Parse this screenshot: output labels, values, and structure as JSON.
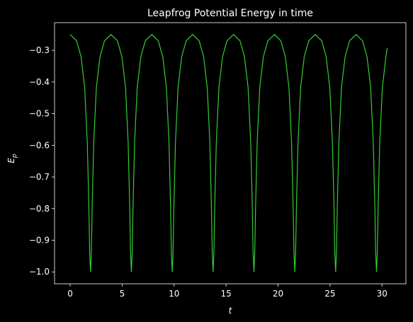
{
  "chart_data": {
    "type": "line",
    "title": "Leapfrog Potential Energy in time",
    "xlabel": "t",
    "ylabel": "E",
    "ylabel_sub": "p",
    "xlim": [
      -1.5,
      32.3
    ],
    "ylim": [
      -1.0375,
      -0.2125
    ],
    "xticks": [
      0,
      5,
      10,
      15,
      20,
      25,
      30
    ],
    "yticks": [
      {
        "value": -1.0,
        "label": "−1.0"
      },
      {
        "value": -0.9,
        "label": "−0.9"
      },
      {
        "value": -0.8,
        "label": "−0.8"
      },
      {
        "value": -0.7,
        "label": "−0.7"
      },
      {
        "value": -0.6,
        "label": "−0.6"
      },
      {
        "value": -0.5,
        "label": "−0.5"
      },
      {
        "value": -0.4,
        "label": "−0.4"
      },
      {
        "value": -0.3,
        "label": "−0.3"
      }
    ],
    "series": [
      {
        "name": "Ep",
        "color": "#32cd32",
        "x": [
          0,
          0.62,
          1.05,
          1.4,
          1.65,
          1.8,
          1.88,
          1.96,
          2.04,
          2.12,
          2.27,
          2.52,
          2.87,
          3.3,
          3.93,
          4.55,
          4.98,
          5.33,
          5.58,
          5.73,
          5.81,
          5.89,
          5.97,
          6.05,
          6.2,
          6.45,
          6.8,
          7.23,
          7.86,
          8.48,
          8.91,
          9.26,
          9.51,
          9.66,
          9.74,
          9.82,
          9.9,
          9.98,
          10.13,
          10.38,
          10.73,
          11.16,
          11.79,
          12.41,
          12.84,
          13.19,
          13.44,
          13.59,
          13.67,
          13.75,
          13.83,
          13.91,
          14.06,
          14.31,
          14.66,
          15.09,
          15.72,
          16.34,
          16.77,
          17.12,
          17.37,
          17.52,
          17.6,
          17.68,
          17.76,
          17.84,
          17.99,
          18.24,
          18.59,
          19.02,
          19.65,
          20.27,
          20.7,
          21.05,
          21.3,
          21.45,
          21.53,
          21.61,
          21.69,
          21.77,
          21.92,
          22.17,
          22.52,
          22.95,
          23.58,
          24.2,
          24.63,
          24.98,
          25.23,
          25.38,
          25.46,
          25.54,
          25.62,
          25.7,
          25.85,
          26.1,
          26.45,
          26.88,
          27.51,
          28.13,
          28.56,
          28.91,
          29.16,
          29.31,
          29.39,
          29.47,
          29.55,
          29.63,
          29.78,
          30.03,
          30.38,
          30.5
        ],
        "values": [
          -0.25,
          -0.27,
          -0.32,
          -0.418,
          -0.592,
          -0.792,
          -0.937,
          -1.0,
          -0.937,
          -0.792,
          -0.592,
          -0.418,
          -0.32,
          -0.27,
          -0.25,
          -0.27,
          -0.32,
          -0.418,
          -0.592,
          -0.792,
          -0.937,
          -1.0,
          -0.937,
          -0.792,
          -0.592,
          -0.418,
          -0.32,
          -0.27,
          -0.25,
          -0.27,
          -0.32,
          -0.418,
          -0.592,
          -0.792,
          -0.937,
          -1.0,
          -0.937,
          -0.792,
          -0.592,
          -0.418,
          -0.32,
          -0.27,
          -0.25,
          -0.27,
          -0.32,
          -0.418,
          -0.592,
          -0.792,
          -0.937,
          -1.0,
          -0.937,
          -0.792,
          -0.592,
          -0.418,
          -0.32,
          -0.27,
          -0.25,
          -0.27,
          -0.32,
          -0.418,
          -0.592,
          -0.792,
          -0.937,
          -1.0,
          -0.937,
          -0.792,
          -0.592,
          -0.418,
          -0.32,
          -0.27,
          -0.25,
          -0.27,
          -0.32,
          -0.418,
          -0.592,
          -0.792,
          -0.937,
          -1.0,
          -0.937,
          -0.792,
          -0.592,
          -0.418,
          -0.32,
          -0.27,
          -0.25,
          -0.27,
          -0.32,
          -0.418,
          -0.592,
          -0.792,
          -0.937,
          -1.0,
          -0.937,
          -0.792,
          -0.592,
          -0.418,
          -0.32,
          -0.27,
          -0.25,
          -0.27,
          -0.32,
          -0.418,
          -0.592,
          -0.792,
          -0.937,
          -1.0,
          -0.937,
          -0.792,
          -0.592,
          -0.418,
          -0.32,
          -0.293
        ]
      }
    ]
  }
}
